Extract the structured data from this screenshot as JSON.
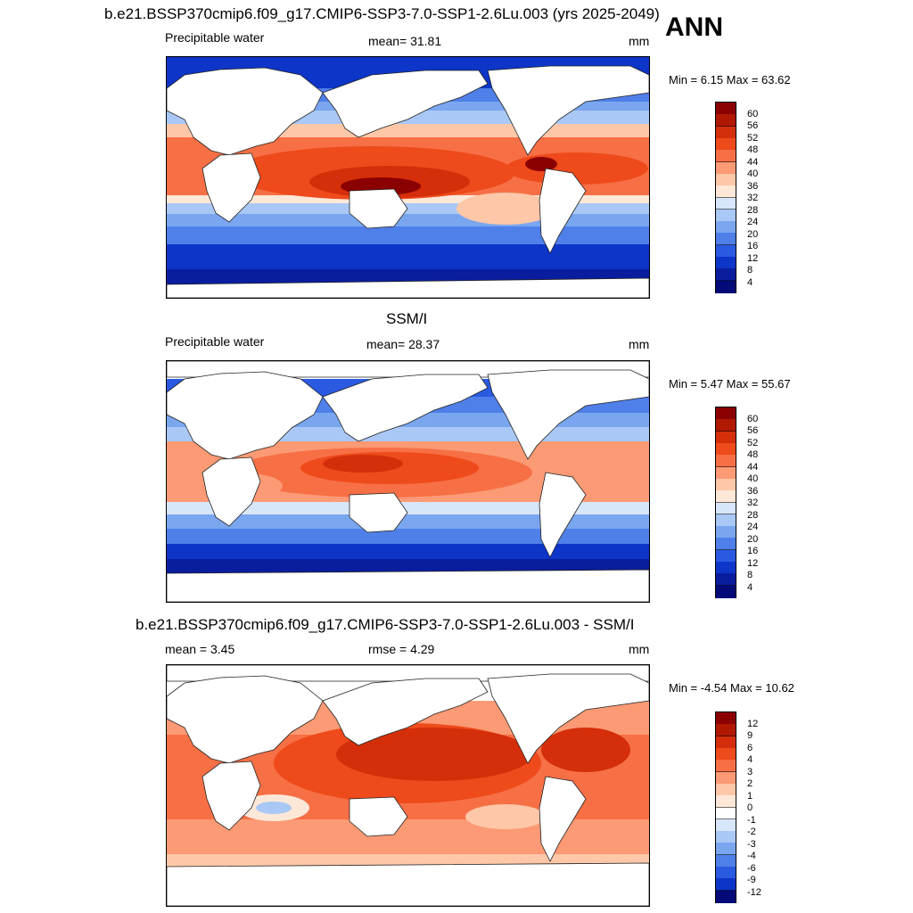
{
  "header": {
    "main_title": "b.e21.BSSP370cmip6.f09_g17.CMIP6-SSP3-7.0-SSP1-2.6Lu.003 (yrs 2025-2049)",
    "season": "ANN"
  },
  "panels": [
    {
      "left_label": "Precipitable water",
      "center_label": "mean=  31.81",
      "right_label": "mm",
      "minmax": "Min =   6.15 Max =  63.62",
      "colorbar_ticks": [
        "60",
        "56",
        "52",
        "48",
        "44",
        "40",
        "36",
        "32",
        "28",
        "24",
        "20",
        "16",
        "12",
        "8",
        "4"
      ]
    },
    {
      "title": "SSM/I",
      "left_label": "Precipitable water",
      "center_label": "mean=  28.37",
      "right_label": "mm",
      "minmax": "Min =   5.47 Max =  55.67",
      "colorbar_ticks": [
        "60",
        "56",
        "52",
        "48",
        "44",
        "40",
        "36",
        "32",
        "28",
        "24",
        "20",
        "16",
        "12",
        "8",
        "4"
      ]
    },
    {
      "title": "b.e21.BSSP370cmip6.f09_g17.CMIP6-SSP3-7.0-SSP1-2.6Lu.003 - SSM/I",
      "left_label": "mean =   3.45",
      "center_label": "rmse =   4.29",
      "right_label": "mm",
      "minmax": "Min =  -4.54 Max =  10.62",
      "colorbar_ticks": [
        "12",
        "9",
        "6",
        "4",
        "3",
        "2",
        "1",
        "0",
        "-1",
        "-2",
        "-3",
        "-4",
        "-6",
        "-9",
        "-12"
      ]
    }
  ],
  "colors": {
    "abs_scale": [
      "#8b0000",
      "#b01800",
      "#d42f0a",
      "#ee4a1b",
      "#f76f45",
      "#fb9a74",
      "#fdc7a8",
      "#fde8d8",
      "#d7e6fb",
      "#a9c8f5",
      "#7aa6ef",
      "#4f7fe8",
      "#2a5ae0",
      "#0d35c8",
      "#0a1d9e",
      "#040a78"
    ],
    "diff_scale": [
      "#8b0000",
      "#b01800",
      "#d42f0a",
      "#ee4a1b",
      "#f76f45",
      "#fb9a74",
      "#fdc7a8",
      "#fde8d8",
      "#ffffff",
      "#d7e6fb",
      "#a9c8f5",
      "#7aa6ef",
      "#4f7fe8",
      "#2a5ae0",
      "#0d35c8",
      "#040a78"
    ]
  }
}
